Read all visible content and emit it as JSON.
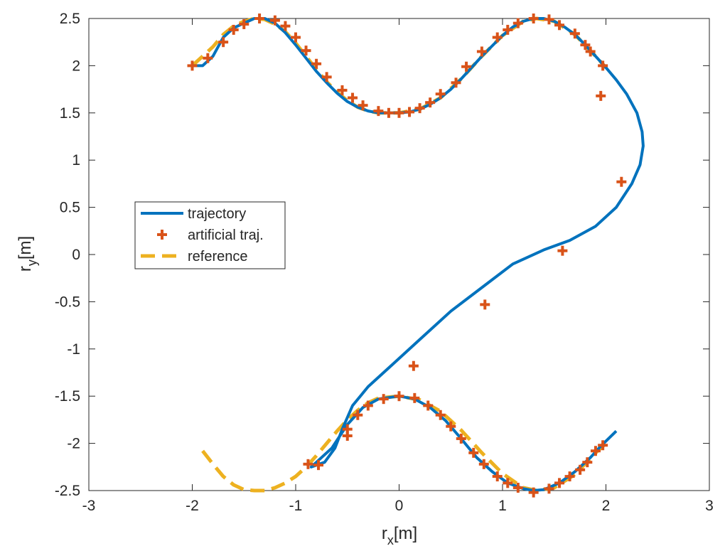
{
  "chart_data": {
    "type": "line",
    "xlabel": "r",
    "xlabel_sub": "x",
    "xlabel_unit": "[m]",
    "ylabel": "r",
    "ylabel_sub": "y",
    "ylabel_unit": "[m]",
    "xlim": [
      -3,
      3
    ],
    "ylim": [
      -2.5,
      2.5
    ],
    "x_ticks": [
      -3,
      -2,
      -1,
      0,
      1,
      2,
      3
    ],
    "y_ticks": [
      -2.5,
      -2,
      -1.5,
      -1,
      -0.5,
      0,
      0.5,
      1,
      1.5,
      2,
      2.5
    ],
    "x_tick_labels": [
      "-3",
      "-2",
      "-1",
      "0",
      "1",
      "2",
      "3"
    ],
    "y_tick_labels": [
      "-2.5",
      "-2",
      "-1.5",
      "-1",
      "-0.5",
      "0",
      "0.5",
      "1",
      "1.5",
      "2",
      "2.5"
    ],
    "grid": false,
    "legend_position": "left-middle",
    "series": [
      {
        "name": "trajectory",
        "style": "solid",
        "color": "#0072BD",
        "points": [
          [
            -2.0,
            2.0
          ],
          [
            -1.9,
            2.0
          ],
          [
            -1.8,
            2.1
          ],
          [
            -1.7,
            2.3
          ],
          [
            -1.6,
            2.4
          ],
          [
            -1.5,
            2.45
          ],
          [
            -1.4,
            2.5
          ],
          [
            -1.3,
            2.5
          ],
          [
            -1.2,
            2.45
          ],
          [
            -1.1,
            2.35
          ],
          [
            -1.0,
            2.22
          ],
          [
            -0.9,
            2.08
          ],
          [
            -0.8,
            1.94
          ],
          [
            -0.7,
            1.82
          ],
          [
            -0.6,
            1.71
          ],
          [
            -0.5,
            1.62
          ],
          [
            -0.4,
            1.56
          ],
          [
            -0.3,
            1.52
          ],
          [
            -0.2,
            1.5
          ],
          [
            -0.1,
            1.5
          ],
          [
            0.0,
            1.5
          ],
          [
            0.1,
            1.51
          ],
          [
            0.2,
            1.54
          ],
          [
            0.3,
            1.59
          ],
          [
            0.4,
            1.66
          ],
          [
            0.5,
            1.75
          ],
          [
            0.6,
            1.86
          ],
          [
            0.7,
            1.98
          ],
          [
            0.8,
            2.1
          ],
          [
            0.9,
            2.21
          ],
          [
            1.0,
            2.32
          ],
          [
            1.1,
            2.41
          ],
          [
            1.2,
            2.47
          ],
          [
            1.3,
            2.5
          ],
          [
            1.4,
            2.5
          ],
          [
            1.5,
            2.47
          ],
          [
            1.6,
            2.41
          ],
          [
            1.7,
            2.33
          ],
          [
            1.8,
            2.22
          ],
          [
            1.9,
            2.1
          ],
          [
            2.0,
            1.98
          ],
          [
            2.1,
            1.85
          ],
          [
            2.2,
            1.7
          ],
          [
            2.3,
            1.5
          ],
          [
            2.35,
            1.3
          ],
          [
            2.36,
            1.15
          ],
          [
            2.33,
            0.95
          ],
          [
            2.25,
            0.75
          ],
          [
            2.1,
            0.5
          ],
          [
            1.9,
            0.3
          ],
          [
            1.65,
            0.15
          ],
          [
            1.4,
            0.05
          ],
          [
            1.1,
            -0.1
          ],
          [
            0.8,
            -0.35
          ],
          [
            0.5,
            -0.6
          ],
          [
            0.2,
            -0.9
          ],
          [
            -0.1,
            -1.2
          ],
          [
            -0.3,
            -1.4
          ],
          [
            -0.45,
            -1.6
          ],
          [
            -0.55,
            -1.85
          ],
          [
            -0.62,
            -2.05
          ],
          [
            -0.72,
            -2.2
          ],
          [
            -0.85,
            -2.25
          ],
          [
            -0.8,
            -2.2
          ],
          [
            -0.65,
            -2.05
          ],
          [
            -0.5,
            -1.8
          ],
          [
            -0.35,
            -1.62
          ],
          [
            -0.2,
            -1.53
          ],
          [
            0.0,
            -1.5
          ],
          [
            0.15,
            -1.53
          ],
          [
            0.3,
            -1.62
          ],
          [
            0.45,
            -1.76
          ],
          [
            0.6,
            -1.95
          ],
          [
            0.75,
            -2.15
          ],
          [
            0.9,
            -2.3
          ],
          [
            1.05,
            -2.42
          ],
          [
            1.2,
            -2.48
          ],
          [
            1.3,
            -2.5
          ],
          [
            1.4,
            -2.49
          ],
          [
            1.55,
            -2.42
          ],
          [
            1.7,
            -2.3
          ],
          [
            1.85,
            -2.15
          ],
          [
            1.95,
            -2.03
          ],
          [
            2.1,
            -1.87
          ]
        ]
      },
      {
        "name": "artificial traj.",
        "style": "plus-marker",
        "color": "#D95319",
        "points": [
          [
            -2.0,
            2.0
          ],
          [
            -1.85,
            2.08
          ],
          [
            -1.7,
            2.25
          ],
          [
            -1.6,
            2.38
          ],
          [
            -1.5,
            2.44
          ],
          [
            -1.35,
            2.5
          ],
          [
            -1.2,
            2.48
          ],
          [
            -1.1,
            2.42
          ],
          [
            -1.0,
            2.3
          ],
          [
            -0.9,
            2.16
          ],
          [
            -0.8,
            2.02
          ],
          [
            -0.7,
            1.88
          ],
          [
            -0.55,
            1.74
          ],
          [
            -0.45,
            1.66
          ],
          [
            -0.35,
            1.58
          ],
          [
            -0.2,
            1.52
          ],
          [
            -0.1,
            1.5
          ],
          [
            0.0,
            1.5
          ],
          [
            0.1,
            1.51
          ],
          [
            0.2,
            1.55
          ],
          [
            0.3,
            1.61
          ],
          [
            0.4,
            1.7
          ],
          [
            0.55,
            1.82
          ],
          [
            0.65,
            1.99
          ],
          [
            0.8,
            2.15
          ],
          [
            0.95,
            2.3
          ],
          [
            1.05,
            2.38
          ],
          [
            1.15,
            2.45
          ],
          [
            1.3,
            2.5
          ],
          [
            1.45,
            2.49
          ],
          [
            1.55,
            2.43
          ],
          [
            1.7,
            2.34
          ],
          [
            1.8,
            2.22
          ],
          [
            1.85,
            2.15
          ],
          [
            1.97,
            2.0
          ],
          [
            1.95,
            1.68
          ],
          [
            2.15,
            0.77
          ],
          [
            1.58,
            0.04
          ],
          [
            0.83,
            -0.53
          ],
          [
            0.14,
            -1.18
          ],
          [
            -0.5,
            -1.92
          ],
          [
            -0.78,
            -2.23
          ],
          [
            -0.88,
            -2.22
          ],
          [
            -0.5,
            -1.85
          ],
          [
            -0.4,
            -1.7
          ],
          [
            -0.3,
            -1.6
          ],
          [
            -0.15,
            -1.53
          ],
          [
            0.0,
            -1.5
          ],
          [
            0.15,
            -1.52
          ],
          [
            0.28,
            -1.6
          ],
          [
            0.4,
            -1.7
          ],
          [
            0.5,
            -1.82
          ],
          [
            0.6,
            -1.95
          ],
          [
            0.72,
            -2.1
          ],
          [
            0.82,
            -2.22
          ],
          [
            0.95,
            -2.35
          ],
          [
            1.05,
            -2.42
          ],
          [
            1.15,
            -2.47
          ],
          [
            1.3,
            -2.52
          ],
          [
            1.45,
            -2.48
          ],
          [
            1.55,
            -2.42
          ],
          [
            1.65,
            -2.35
          ],
          [
            1.75,
            -2.28
          ],
          [
            1.82,
            -2.2
          ],
          [
            1.9,
            -2.08
          ],
          [
            1.97,
            -2.02
          ]
        ]
      },
      {
        "name": "reference",
        "style": "dashed",
        "color": "#EDB120",
        "points": [
          [
            -2.0,
            2.0
          ],
          [
            -1.9,
            2.1
          ],
          [
            -1.8,
            2.2
          ],
          [
            -1.7,
            2.33
          ],
          [
            -1.6,
            2.42
          ],
          [
            -1.5,
            2.47
          ],
          [
            -1.4,
            2.5
          ],
          [
            -1.3,
            2.49
          ],
          [
            -1.2,
            2.44
          ],
          [
            -1.1,
            2.36
          ],
          [
            -1.0,
            2.24
          ],
          [
            -0.9,
            2.1
          ],
          [
            -0.8,
            1.96
          ],
          [
            -0.7,
            1.83
          ],
          [
            -0.6,
            1.72
          ],
          [
            -0.5,
            1.63
          ],
          [
            -0.4,
            1.56
          ],
          [
            -0.3,
            1.52
          ],
          [
            -0.2,
            1.5
          ],
          [
            0.0,
            1.5
          ],
          [
            0.2,
            1.54
          ],
          [
            0.4,
            1.66
          ],
          [
            0.6,
            1.86
          ],
          [
            0.8,
            2.1
          ],
          [
            1.0,
            2.32
          ],
          [
            1.2,
            2.47
          ],
          [
            1.33,
            2.5
          ],
          [
            1.5,
            2.47
          ],
          [
            1.7,
            2.33
          ],
          [
            1.9,
            2.1
          ],
          [
            2.0,
            1.98
          ],
          null,
          [
            -1.9,
            -2.08
          ],
          [
            -1.8,
            -2.22
          ],
          [
            -1.7,
            -2.35
          ],
          [
            -1.6,
            -2.44
          ],
          [
            -1.5,
            -2.49
          ],
          [
            -1.4,
            -2.5
          ],
          [
            -1.3,
            -2.5
          ],
          [
            -1.2,
            -2.47
          ],
          [
            -1.1,
            -2.42
          ],
          [
            -1.0,
            -2.35
          ],
          [
            -0.9,
            -2.25
          ],
          [
            -0.8,
            -2.13
          ],
          [
            -0.7,
            -2.0
          ],
          [
            -0.6,
            -1.87
          ],
          [
            -0.5,
            -1.75
          ],
          [
            -0.4,
            -1.65
          ],
          [
            -0.3,
            -1.57
          ],
          [
            -0.2,
            -1.52
          ],
          [
            0.0,
            -1.5
          ],
          [
            0.2,
            -1.54
          ],
          [
            0.4,
            -1.66
          ],
          [
            0.6,
            -1.86
          ],
          [
            0.8,
            -2.1
          ],
          [
            1.0,
            -2.32
          ],
          [
            1.2,
            -2.47
          ],
          [
            1.33,
            -2.5
          ],
          [
            1.5,
            -2.47
          ],
          [
            1.7,
            -2.33
          ],
          [
            1.9,
            -2.1
          ],
          [
            2.0,
            -2.0
          ]
        ]
      }
    ]
  }
}
